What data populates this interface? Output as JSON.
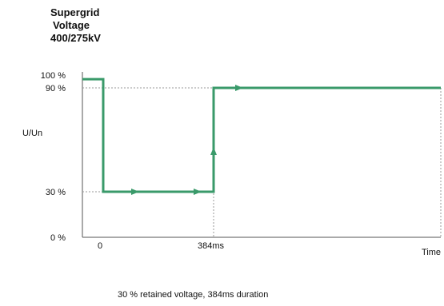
{
  "chart_data": {
    "type": "line",
    "title": [
      "Supergrid",
      "Voltage",
      "400/275kV"
    ],
    "ylabel": "U/Un",
    "xlabel": "Time",
    "y_ticks": [
      {
        "value": 100,
        "label": "100 %"
      },
      {
        "value": 90,
        "label": "90 %"
      },
      {
        "value": 30,
        "label": "30 %"
      },
      {
        "value": 0,
        "label": "0 %"
      }
    ],
    "x_ticks": [
      {
        "value": 0,
        "label": "0"
      },
      {
        "value": 384,
        "label": "384ms"
      }
    ],
    "reference_level": 90,
    "series": [
      {
        "color": "#3a9a6a",
        "points": [
          {
            "x": -40,
            "y": 95
          },
          {
            "x": 0,
            "y": 95
          },
          {
            "x": 0,
            "y": 30
          },
          {
            "x": 384,
            "y": 30
          },
          {
            "x": 384,
            "y": 90
          },
          {
            "x": 1430,
            "y": 90
          }
        ]
      }
    ],
    "ylim": [
      0,
      100
    ],
    "caption": "30 % retained voltage, 384ms duration"
  }
}
